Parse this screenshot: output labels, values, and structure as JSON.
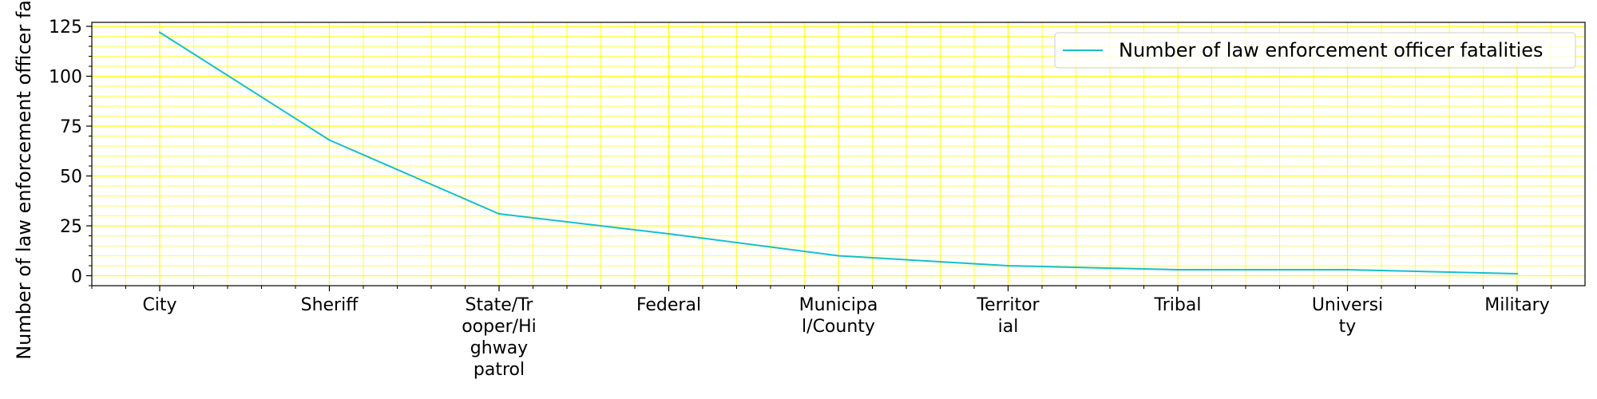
{
  "chart_data": {
    "type": "line",
    "title": "",
    "xlabel": "",
    "ylabel": "Number of law enforcement officer fatalities",
    "categories": [
      [
        "City"
      ],
      [
        "Sheriff"
      ],
      [
        "State/Tr",
        "ooper/Hi",
        "ghway",
        "patrol"
      ],
      [
        "Federal"
      ],
      [
        "Municipa",
        "l/County"
      ],
      [
        "Territor",
        "ial"
      ],
      [
        "Tribal"
      ],
      [
        "Universi",
        "ty"
      ],
      [
        "Military"
      ]
    ],
    "series": [
      {
        "name": "Number of law enforcement officer fatalities",
        "values": [
          122,
          68,
          31,
          21,
          10,
          5,
          3,
          3,
          1
        ],
        "color": "#17becf"
      }
    ],
    "ylim": [
      -5,
      127
    ],
    "yticks": [
      0,
      25,
      50,
      75,
      100,
      125
    ],
    "grid": true,
    "minor_grid": true,
    "grid_color": "#ffff00",
    "legend_position": "upper right"
  }
}
